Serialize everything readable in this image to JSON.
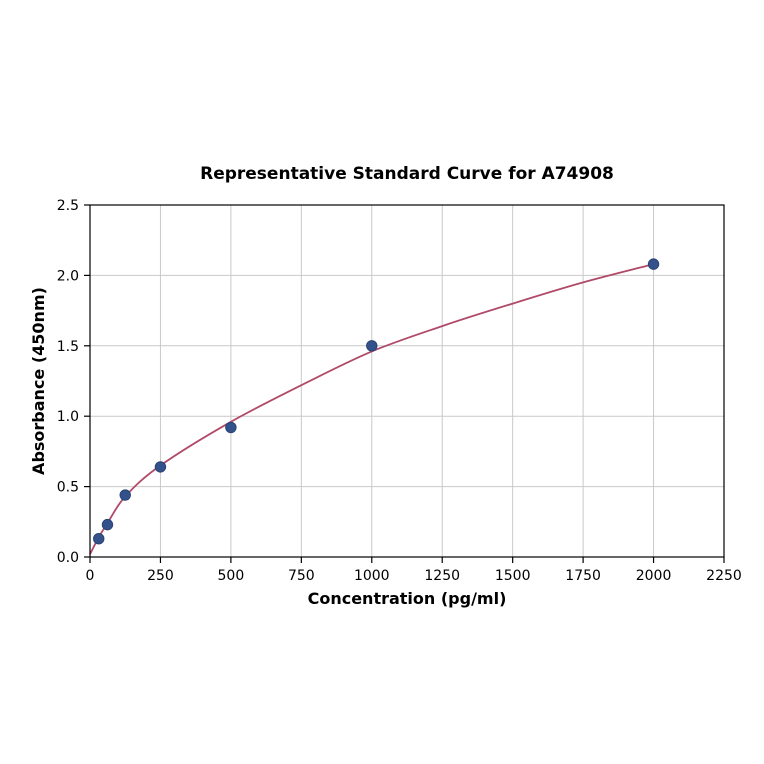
{
  "chart_data": {
    "type": "scatter",
    "title": "Representative Standard Curve for A74908",
    "xlabel": "Concentration (pg/ml)",
    "ylabel": "Absorbance (450nm)",
    "xlim": [
      0,
      2250
    ],
    "ylim": [
      0,
      2.5
    ],
    "x_ticks": [
      0,
      250,
      500,
      750,
      1000,
      1250,
      1500,
      1750,
      2000,
      2250
    ],
    "x_tick_labels": [
      "0",
      "250",
      "500",
      "750",
      "1000",
      "1250",
      "1500",
      "1750",
      "2000",
      "2250"
    ],
    "y_ticks": [
      0,
      0.5,
      1.0,
      1.5,
      2.0,
      2.5
    ],
    "y_tick_labels": [
      "0.0",
      "0.5",
      "1.0",
      "1.5",
      "2.0",
      "2.5"
    ],
    "grid": true,
    "legend": "none",
    "colors": {
      "marker": "#33518a",
      "marker_edge": "#2a4372",
      "curve": "#b04a68",
      "grid": "#c9c9c9",
      "frame": "#000000",
      "background": "#ffffff"
    },
    "series": [
      {
        "name": "standards",
        "type": "scatter",
        "x": [
          31,
          62,
          125,
          250,
          500,
          1000,
          2000
        ],
        "y": [
          0.13,
          0.23,
          0.44,
          0.64,
          0.92,
          1.5,
          2.08
        ]
      },
      {
        "name": "fitted-curve",
        "type": "line",
        "x": [
          0,
          31,
          62,
          125,
          250,
          500,
          750,
          1000,
          1250,
          1500,
          1750,
          2000
        ],
        "y": [
          0.02,
          0.14,
          0.24,
          0.43,
          0.65,
          0.96,
          1.22,
          1.46,
          1.64,
          1.8,
          1.95,
          2.08
        ]
      }
    ]
  }
}
